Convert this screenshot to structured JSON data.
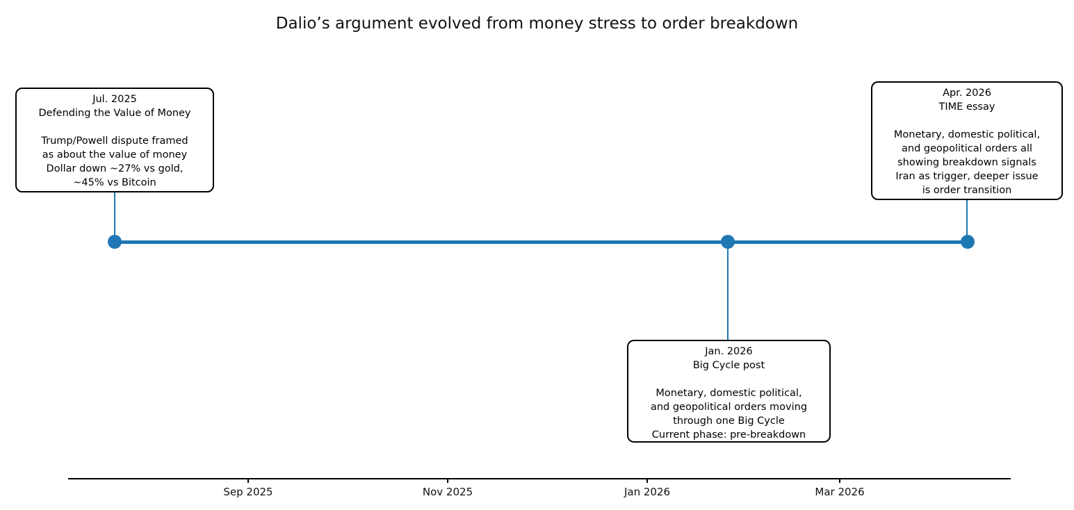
{
  "title": "Dalio’s argument evolved from money stress to order breakdown",
  "colors": {
    "accent_blue": "#1f77b4",
    "box_border": "#000000",
    "background": "#ffffff",
    "text": "#111111"
  },
  "events": [
    {
      "date": "Jul. 2025",
      "source": "Defending the Value of Money",
      "body": "Trump/Powell dispute framed\nas about the value of money\nDollar down ~27% vs gold,\n~45% vs Bitcoin",
      "position": "above"
    },
    {
      "date": "Jan. 2026",
      "source": "Big Cycle post",
      "body": "Monetary, domestic political,\nand geopolitical orders moving\nthrough one Big Cycle\nCurrent phase: pre-breakdown",
      "position": "below"
    },
    {
      "date": "Apr. 2026",
      "source": "TIME essay",
      "body": "Monetary, domestic political,\nand geopolitical orders all\nshowing breakdown signals\nIran as trigger, deeper issue\nis order transition",
      "position": "above"
    }
  ],
  "axis": {
    "tick_labels": [
      "Sep 2025",
      "Nov 2025",
      "Jan 2026",
      "Mar 2026"
    ]
  },
  "chart_data": {
    "type": "scatter",
    "subtype": "timeline",
    "title": "Dalio’s argument evolved from money stress to order breakdown",
    "x_axis": {
      "tick_labels": [
        "Sep 2025",
        "Nov 2025",
        "Jan 2026",
        "Mar 2026"
      ],
      "range_note": "date axis spanning roughly Jul 2025 to mid Apr 2026"
    },
    "points": [
      {
        "x": "Jul 2025",
        "y": 0,
        "label": "Defending the Value of Money",
        "annotation": "Trump/Powell dispute framed as about the value of money; Dollar down ~27% vs gold, ~45% vs Bitcoin",
        "annotation_side": "above"
      },
      {
        "x": "Jan 2026",
        "y": 0,
        "label": "Big Cycle post",
        "annotation": "Monetary, domestic political, and geopolitical orders moving through one Big Cycle; Current phase: pre-breakdown",
        "annotation_side": "below"
      },
      {
        "x": "Apr 2026",
        "y": 0,
        "label": "TIME essay",
        "annotation": "Monetary, domestic political, and geopolitical orders all showing breakdown signals; Iran as trigger, deeper issue is order transition",
        "annotation_side": "above"
      }
    ],
    "marker_color": "#1f77b4",
    "line_color": "#1f77b4",
    "grid": false,
    "legend": false
  }
}
